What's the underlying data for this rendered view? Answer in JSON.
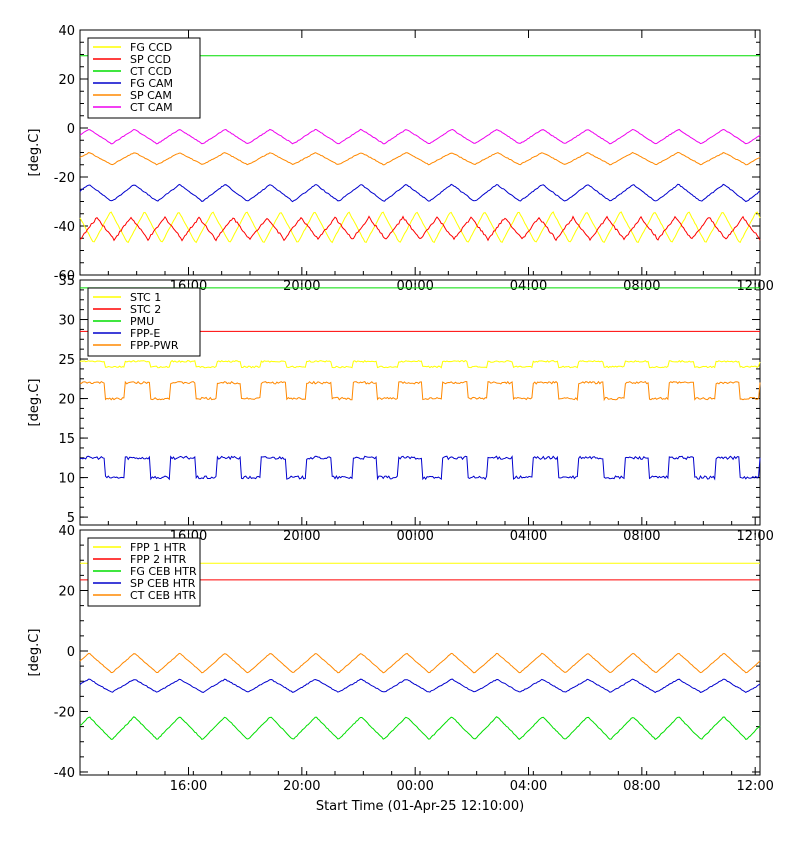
{
  "xlabel": "Start Time (01-Apr-25 12:10:00)",
  "chart_data": [
    {
      "type": "line",
      "ylabel": "[deg.C]",
      "ylim": [
        -60,
        40
      ],
      "yticks": [
        -60,
        -40,
        -20,
        0,
        20,
        40
      ],
      "xlim": [
        0,
        24
      ],
      "xticks": [
        "16:00",
        "20:00",
        "00:00",
        "04:00",
        "08:00",
        "12:00"
      ],
      "xtick_hours": [
        3.83,
        7.83,
        11.83,
        15.83,
        19.83,
        23.83
      ],
      "legend_position": "top-left",
      "series": [
        {
          "name": "FG CCD",
          "color": "#ffff00",
          "kind": "wave",
          "base": -40.5,
          "amp": 6.5,
          "period": 1.2,
          "phase": 0.6,
          "noise": 0.3
        },
        {
          "name": "SP CCD",
          "color": "#ff0000",
          "kind": "wave",
          "base": -41,
          "amp": 4.5,
          "period": 1.2,
          "phase": 0.0,
          "noise": 0.9
        },
        {
          "name": "CT CCD",
          "color": "#00dd00",
          "kind": "flat",
          "value": 29.5
        },
        {
          "name": "FG CAM",
          "color": "#0000cc",
          "kind": "wave",
          "base": -26.5,
          "amp": 3.5,
          "period": 1.6,
          "phase": 0.3,
          "noise": 0.4
        },
        {
          "name": "SP CAM",
          "color": "#ff8800",
          "kind": "wave",
          "base": -12.5,
          "amp": 2.5,
          "period": 1.6,
          "phase": 0.3,
          "noise": 0.3
        },
        {
          "name": "CT CAM",
          "color": "#ee00ee",
          "kind": "wave",
          "base": -3.5,
          "amp": 3.0,
          "period": 1.6,
          "phase": 0.3,
          "noise": 0.3
        }
      ]
    },
    {
      "type": "line",
      "ylabel": "[deg.C]",
      "ylim": [
        4,
        35
      ],
      "yticks": [
        5,
        10,
        15,
        20,
        25,
        30,
        35
      ],
      "xlim": [
        0,
        24
      ],
      "xticks": [
        "16:00",
        "20:00",
        "00:00",
        "04:00",
        "08:00",
        "12:00"
      ],
      "xtick_hours": [
        3.83,
        7.83,
        11.83,
        15.83,
        19.83,
        23.83
      ],
      "legend_position": "top-left",
      "series": [
        {
          "name": "STC 1",
          "color": "#ffff00",
          "kind": "step",
          "low": 24,
          "high": 24.7,
          "period": 1.6,
          "noise": 0.2
        },
        {
          "name": "STC 2",
          "color": "#ff0000",
          "kind": "flat",
          "value": 28.5
        },
        {
          "name": "PMU",
          "color": "#00dd00",
          "kind": "flat",
          "value": 34
        },
        {
          "name": "FPP-E",
          "color": "#0000cc",
          "kind": "step",
          "low": 10,
          "high": 12.5,
          "period": 1.6,
          "noise": 0.4
        },
        {
          "name": "FPP-PWR",
          "color": "#ff8800",
          "kind": "step",
          "low": 20,
          "high": 22,
          "period": 1.6,
          "noise": 0.3
        }
      ]
    },
    {
      "type": "line",
      "ylabel": "[deg.C]",
      "ylim": [
        -41,
        40
      ],
      "yticks": [
        -40,
        -20,
        0,
        20,
        40
      ],
      "xlim": [
        0,
        24
      ],
      "xticks": [
        "16:00",
        "20:00",
        "00:00",
        "04:00",
        "08:00",
        "12:00"
      ],
      "xtick_hours": [
        3.83,
        7.83,
        11.83,
        15.83,
        19.83,
        23.83
      ],
      "legend_position": "top-left",
      "series": [
        {
          "name": "FPP 1 HTR",
          "color": "#ffff00",
          "kind": "flat",
          "value": 29
        },
        {
          "name": "FPP 2 HTR",
          "color": "#ff0000",
          "kind": "flat",
          "value": 23.5
        },
        {
          "name": "FG CEB HTR",
          "color": "#00dd00",
          "kind": "wave",
          "base": -25.5,
          "amp": 3.8,
          "period": 1.6,
          "phase": 0.3,
          "noise": 0.3
        },
        {
          "name": "SP CEB HTR",
          "color": "#0000cc",
          "kind": "wave",
          "base": -11.5,
          "amp": 2.2,
          "period": 1.6,
          "phase": 0.3,
          "noise": 0.3
        },
        {
          "name": "CT CEB HTR",
          "color": "#ff8800",
          "kind": "wave",
          "base": -4,
          "amp": 3.3,
          "period": 1.6,
          "phase": 0.3,
          "noise": 0.2
        }
      ]
    }
  ]
}
